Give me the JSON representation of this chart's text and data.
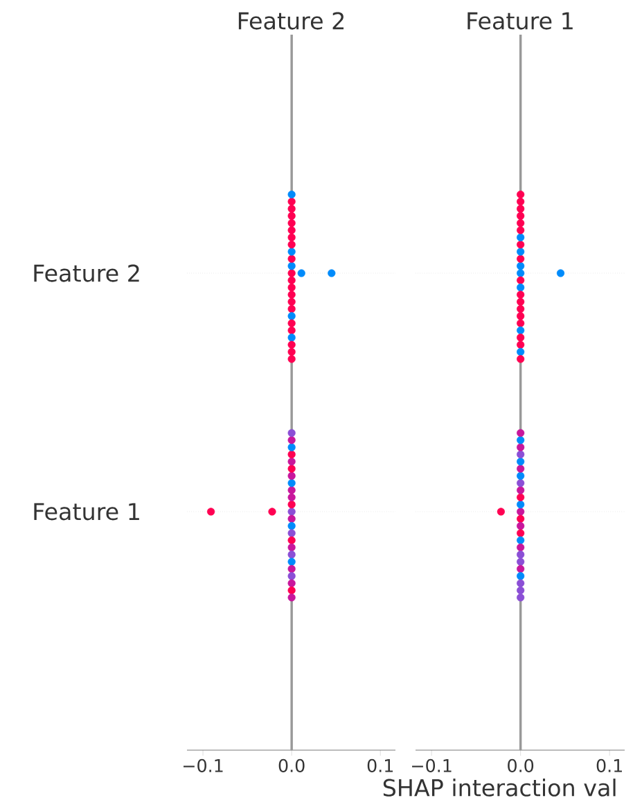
{
  "chart_data": [
    {
      "type": "scatter",
      "orientation": "horizontal",
      "title": "Feature 2",
      "categories": [
        "Feature 2",
        "Feature 1"
      ],
      "xlim": [
        -0.118,
        0.117
      ],
      "xticks": [
        {
          "value": -0.1,
          "label": "−0.1"
        },
        {
          "value": 0,
          "label": "0.0"
        },
        {
          "value": 0.1,
          "label": "0.1"
        }
      ],
      "grid": "y",
      "marker": "circle",
      "ref_lines": [
        {
          "axis": "x",
          "value": 0,
          "color": "#999999"
        }
      ],
      "series": [
        {
          "x": [
            "Feature 2",
            "Feature 2",
            "Feature 2",
            "Feature 2",
            "Feature 2",
            "Feature 2",
            "Feature 2",
            "Feature 2",
            "Feature 2",
            "Feature 2",
            "Feature 2",
            "Feature 2",
            "Feature 2",
            "Feature 2",
            "Feature 2",
            "Feature 2",
            "Feature 2",
            "Feature 2",
            "Feature 2",
            "Feature 2",
            "Feature 2",
            "Feature 2",
            "Feature 2",
            "Feature 2",
            "Feature 2",
            "Feature 2"
          ],
          "values": [
            0,
            0,
            0,
            0,
            0,
            0,
            0,
            0,
            0,
            0,
            0,
            0,
            0,
            0,
            0,
            0,
            0,
            0,
            0,
            0,
            0,
            0,
            0,
            0,
            0.011,
            0.045
          ],
          "colors": [
            "#ff0052",
            "#ff0052",
            "#008bfb",
            "#ff0052",
            "#ff0052",
            "#ff0052",
            "#008bfb",
            "#ff0052",
            "#ff0052",
            "#ff0052",
            "#ff0052",
            "#008bfb",
            "#ff0052",
            "#ff0052",
            "#ff0052",
            "#ff0052",
            "#ff0052",
            "#008bfb",
            "#ff0052",
            "#ff0052",
            "#ff0052",
            "#ff0052",
            "#008bfb",
            "#ff0052",
            "#008bfb",
            "#008bfb"
          ]
        },
        {
          "x": [
            "Feature 1",
            "Feature 1",
            "Feature 1",
            "Feature 1",
            "Feature 1",
            "Feature 1",
            "Feature 1",
            "Feature 1",
            "Feature 1",
            "Feature 1",
            "Feature 1",
            "Feature 1",
            "Feature 1",
            "Feature 1",
            "Feature 1",
            "Feature 1",
            "Feature 1",
            "Feature 1",
            "Feature 1",
            "Feature 1",
            "Feature 1",
            "Feature 1",
            "Feature 1",
            "Feature 1",
            "Feature 1",
            "Feature 1"
          ],
          "values": [
            0,
            0,
            0,
            0,
            0,
            0,
            0,
            0,
            0,
            0,
            0,
            0,
            0,
            0,
            0,
            0,
            0,
            0,
            0,
            0,
            0,
            0,
            0,
            0,
            -0.091,
            -0.022
          ],
          "colors": [
            "#8b4fd6",
            "#c8179c",
            "#ff0052",
            "#008bfb",
            "#c8179c",
            "#8b4fd6",
            "#c8179c",
            "#ff0052",
            "#008bfb",
            "#c8179c",
            "#c8179c",
            "#8b4fd6",
            "#ff0052",
            "#008bfb",
            "#c8179c",
            "#c8179c",
            "#ff0052",
            "#8b4fd6",
            "#008bfb",
            "#c8179c",
            "#c8179c",
            "#ff0052",
            "#8b4fd6",
            "#c8179c",
            "#ff0052",
            "#ff0052"
          ]
        }
      ]
    },
    {
      "type": "scatter",
      "orientation": "horizontal",
      "title": "Feature 1",
      "categories": [
        "Feature 2",
        "Feature 1"
      ],
      "xlim": [
        -0.118,
        0.117
      ],
      "xticks": [
        {
          "value": -0.1,
          "label": "−0.1"
        },
        {
          "value": 0,
          "label": "0.0"
        },
        {
          "value": 0.1,
          "label": "0.1"
        }
      ],
      "grid": "y",
      "marker": "circle",
      "tick_labels": "x",
      "xlabel": "SHAP interaction val",
      "ref_lines": [
        {
          "axis": "x",
          "value": 0,
          "color": "#999999"
        }
      ],
      "series": [
        {
          "x": [
            "Feature 2",
            "Feature 2",
            "Feature 2",
            "Feature 2",
            "Feature 2",
            "Feature 2",
            "Feature 2",
            "Feature 2",
            "Feature 2",
            "Feature 2",
            "Feature 2",
            "Feature 2",
            "Feature 2",
            "Feature 2",
            "Feature 2",
            "Feature 2",
            "Feature 2",
            "Feature 2",
            "Feature 2",
            "Feature 2",
            "Feature 2",
            "Feature 2",
            "Feature 2",
            "Feature 2",
            "Feature 2"
          ],
          "values": [
            0,
            0,
            0,
            0,
            0,
            0,
            0,
            0,
            0,
            0,
            0,
            0,
            0,
            0,
            0,
            0,
            0,
            0,
            0,
            0,
            0,
            0,
            0,
            0,
            0.045
          ],
          "colors": [
            "#008bfb",
            "#ff0052",
            "#008bfb",
            "#008bfb",
            "#ff0052",
            "#ff0052",
            "#008bfb",
            "#ff0052",
            "#ff0052",
            "#ff0052",
            "#008bfb",
            "#ff0052",
            "#ff0052",
            "#ff0052",
            "#ff0052",
            "#008bfb",
            "#ff0052",
            "#ff0052",
            "#ff0052",
            "#ff0052",
            "#ff0052",
            "#008bfb",
            "#ff0052",
            "#ff0052",
            "#008bfb"
          ]
        },
        {
          "x": [
            "Feature 1",
            "Feature 1",
            "Feature 1",
            "Feature 1",
            "Feature 1",
            "Feature 1",
            "Feature 1",
            "Feature 1",
            "Feature 1",
            "Feature 1",
            "Feature 1",
            "Feature 1",
            "Feature 1",
            "Feature 1",
            "Feature 1",
            "Feature 1",
            "Feature 1",
            "Feature 1",
            "Feature 1",
            "Feature 1",
            "Feature 1",
            "Feature 1",
            "Feature 1",
            "Feature 1",
            "Feature 1"
          ],
          "values": [
            0,
            0,
            0,
            0,
            0,
            0,
            0,
            0,
            0,
            0,
            0,
            0,
            0,
            0,
            0,
            0,
            0,
            0,
            0,
            0,
            0,
            0,
            0,
            0,
            -0.022
          ],
          "colors": [
            "#c8179c",
            "#ff0052",
            "#008bfb",
            "#c8179c",
            "#ff0052",
            "#ff0052",
            "#c8179c",
            "#008bfb",
            "#8b4fd6",
            "#c8179c",
            "#008bfb",
            "#8b4fd6",
            "#c8179c",
            "#8b4fd6",
            "#008bfb",
            "#c8179c",
            "#8b4fd6",
            "#008bfb",
            "#c8179c",
            "#8b4fd6",
            "#008bfb",
            "#8b4fd6",
            "#c8179c",
            "#8b4fd6",
            "#ff0052"
          ]
        }
      ]
    }
  ]
}
